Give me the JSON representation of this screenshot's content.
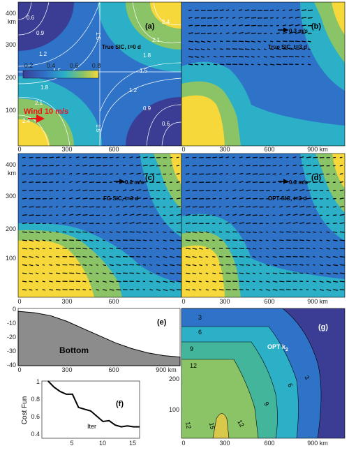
{
  "colors": {
    "deep": "#3b3d94",
    "blue": "#2f73c9",
    "cyan": "#2bb0c8",
    "teal": "#42b59a",
    "green": "#8bc467",
    "yellow": "#f7d83a",
    "wind_arrow": "#ee1111",
    "bottom_fill": "#8c8c8c"
  },
  "panels": {
    "a": {
      "label": "(a)",
      "title": "True SIC, t=0 d",
      "colorbar_ticks": [
        "0.2",
        "0.4",
        "0.6",
        "0.8"
      ],
      "contour_labels": [
        "0.6",
        "0.9",
        "1.2",
        "1.5",
        "1.8",
        "2.1",
        "2.4",
        "0.6",
        "0.9",
        "1.2",
        "1.5",
        "1.8",
        "2.1",
        "2.4",
        "1.5",
        "1.5"
      ],
      "wind_label": "Wind  10 m/s"
    },
    "b": {
      "label": "(b)",
      "title": "True SIC, t=3 d",
      "scale": "0.3 m/s"
    },
    "c": {
      "label": "(c)",
      "title": "FG SIC, t=3 d",
      "scale": "0.3 m/s"
    },
    "d": {
      "label": "(d)",
      "title": "OPT SIC, t=3 d",
      "scale": "0.3 m/s"
    },
    "e": {
      "label": "(e)",
      "title": "Bottom",
      "y_ticks": [
        "0",
        "-10",
        "-20",
        "-30",
        "-40"
      ],
      "x_ticks": [
        "0",
        "300",
        "600",
        "900 km"
      ]
    },
    "f": {
      "label": "(f)",
      "ylabel": "Cost Fun",
      "xlabel": "Iter",
      "y_ticks": [
        "1",
        "0.8",
        "0.6",
        "0.4"
      ],
      "x_ticks": [
        "5",
        "10",
        "15"
      ]
    },
    "g": {
      "label": "(g)",
      "title_main": "OPT k",
      "title_sub": "2",
      "contour_labels": [
        "3",
        "6",
        "9",
        "12",
        "3",
        "6",
        "9",
        "12",
        "12",
        "15"
      ],
      "y_ticks": [
        "200",
        "100"
      ],
      "x_ticks": [
        "0",
        "300",
        "600",
        "900 km"
      ]
    }
  },
  "map_axes": {
    "y_ticks": [
      "400",
      "km",
      "300",
      "200",
      "100"
    ],
    "x_ticks_left": [
      "0",
      "300",
      "600"
    ],
    "x_ticks_right": [
      "0",
      "300",
      "600",
      "900 km"
    ]
  },
  "chart_data": [
    {
      "type": "line",
      "xlabel": "Iter",
      "ylabel": "Cost Fun",
      "x": [
        1,
        2,
        3,
        4,
        5,
        6,
        7,
        8,
        9,
        10,
        11,
        12,
        13,
        14,
        15,
        16
      ],
      "y": [
        1.0,
        0.93,
        0.88,
        0.85,
        0.85,
        0.7,
        0.68,
        0.66,
        0.6,
        0.54,
        0.55,
        0.5,
        0.48,
        0.49,
        0.48,
        0.48
      ],
      "xlim": [
        0,
        16
      ],
      "ylim": [
        0.35,
        1.0
      ]
    },
    {
      "type": "area",
      "title": "Bottom",
      "x": [
        0,
        100,
        200,
        300,
        400,
        500,
        600,
        700,
        800,
        900,
        1000
      ],
      "y": [
        -2,
        -3,
        -5,
        -9,
        -14,
        -19,
        -24,
        -28,
        -31,
        -33,
        -34
      ],
      "xlim": [
        0,
        1000
      ],
      "ylim": [
        -40,
        0
      ]
    }
  ]
}
